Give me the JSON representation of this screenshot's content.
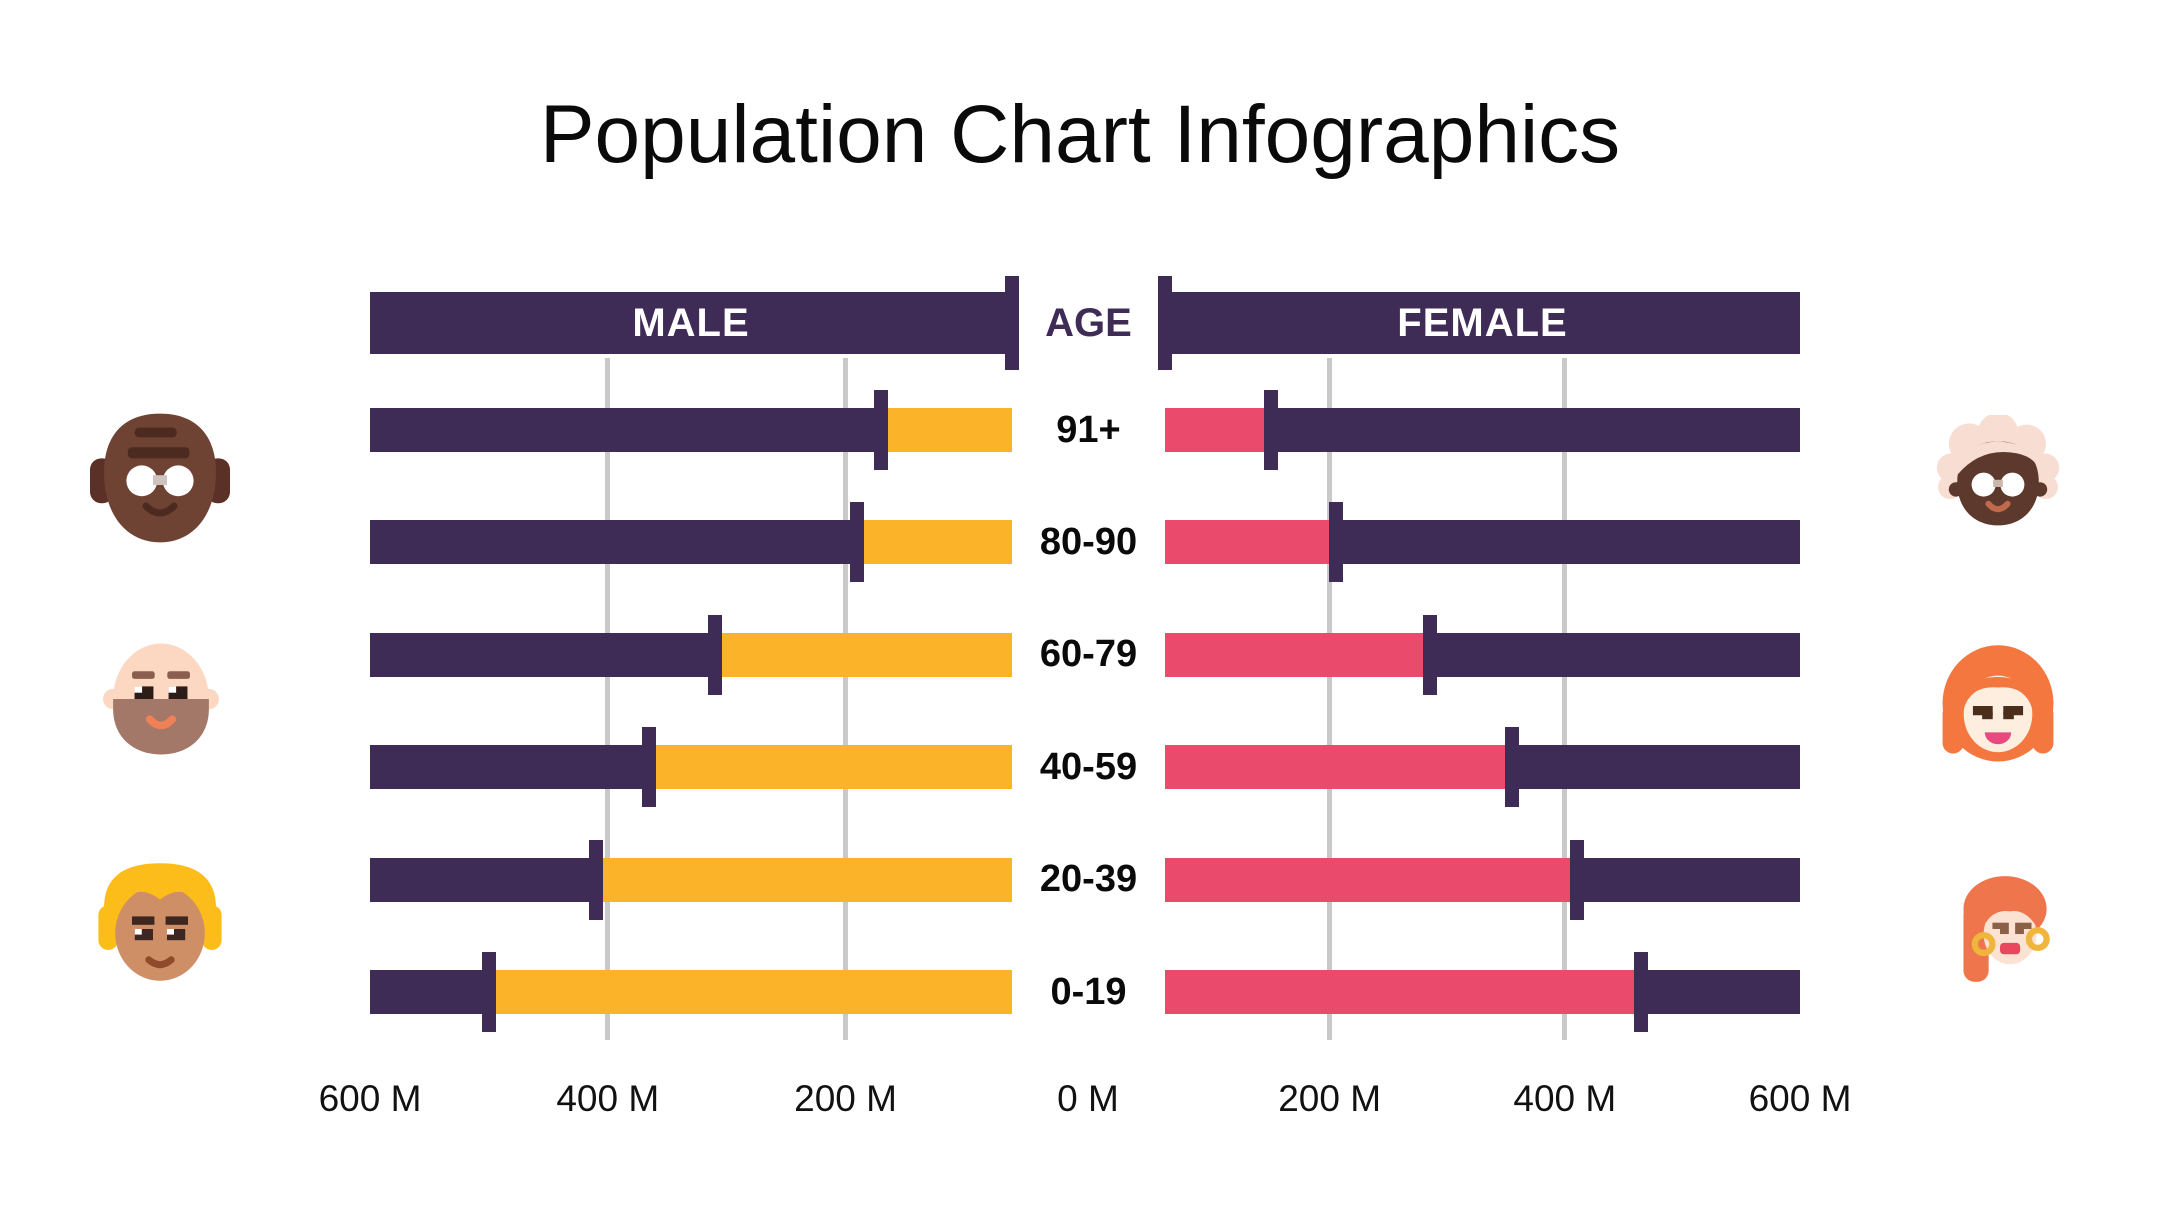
{
  "title": "Population Chart Infographics",
  "header": {
    "male_label": "MALE",
    "age_label": "AGE",
    "female_label": "FEMALE"
  },
  "axis_labels": [
    "600 M",
    "400 M",
    "200 M",
    "0 M",
    "200 M",
    "400 M",
    "600 M"
  ],
  "chart_data": {
    "type": "bar",
    "subtype": "population-pyramid",
    "title": "Population Chart Infographics",
    "categories": [
      "91+",
      "80-90",
      "60-79",
      "40-59",
      "20-39",
      "0-19"
    ],
    "series": [
      {
        "name": "MALE",
        "side": "left",
        "values_millions": [
          170,
          190,
          310,
          365,
          410,
          500
        ]
      },
      {
        "name": "FEMALE",
        "side": "right",
        "values_millions": [
          150,
          205,
          285,
          355,
          410,
          465
        ]
      }
    ],
    "units": "M (millions)",
    "xlabel": "",
    "ylabel": "AGE",
    "xlim_per_side": [
      0,
      600
    ],
    "axis_tick_step_millions": 200,
    "track_inner_gap_millions": 60,
    "grid": true,
    "gridline_values_millions": [
      200,
      400
    ],
    "legend_position": "none"
  },
  "colors": {
    "track_purple": "#3F2C56",
    "male_fill_yellow": "#FBB32A",
    "female_fill_pink": "#EA4A6B",
    "gridline_gray": "#C9C9C9",
    "background": "#FFFFFF",
    "header_text": "#FFFFFF",
    "title_text": "#0A0A0A"
  },
  "avatars": {
    "left": [
      {
        "name": "elderly-man-avatar-icon",
        "description": "bald elderly man, dark skin, white round glasses, forehead wrinkles"
      },
      {
        "name": "adult-man-avatar-icon",
        "description": "bald middle-aged man, light skin, brown beard, smiling"
      },
      {
        "name": "young-man-avatar-icon",
        "description": "young man with blond hair, tan skin"
      }
    ],
    "right": [
      {
        "name": "elderly-woman-avatar-icon",
        "description": "elderly woman, dark skin, white curly hair, round glasses"
      },
      {
        "name": "adult-woman-avatar-icon",
        "description": "middle-aged woman, orange wavy hair, pink smile"
      },
      {
        "name": "young-woman-avatar-icon",
        "description": "young woman, long orange hair, gold hoop earrings"
      }
    ]
  }
}
